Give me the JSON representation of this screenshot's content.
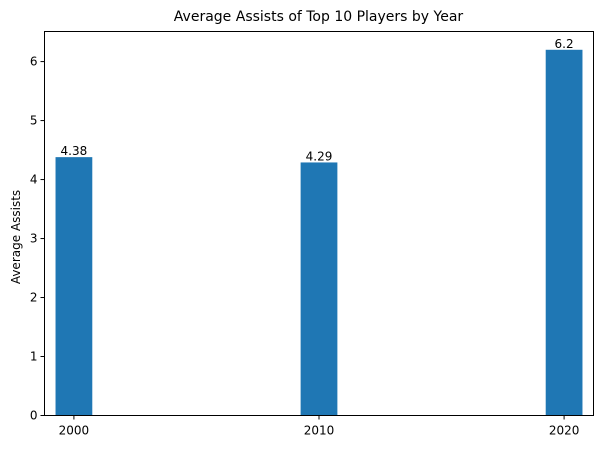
{
  "chart_data": {
    "type": "bar",
    "title": "Average Assists of Top 10 Players by Year",
    "xlabel": "",
    "ylabel": "Average Assists",
    "categories": [
      "2000",
      "2010",
      "2020"
    ],
    "x": [
      2000,
      2010,
      2020
    ],
    "values": [
      4.38,
      4.29,
      6.2
    ],
    "value_labels": [
      "4.38",
      "4.29",
      "6.2"
    ],
    "xlim": [
      1998.8,
      2021.2
    ],
    "ylim": [
      0,
      6.51
    ],
    "yticks": [
      0,
      1,
      2,
      3,
      4,
      5,
      6
    ],
    "bar_width_years": 1.5,
    "grid": false,
    "legend": "none",
    "bar_color": "#1f77b4"
  }
}
